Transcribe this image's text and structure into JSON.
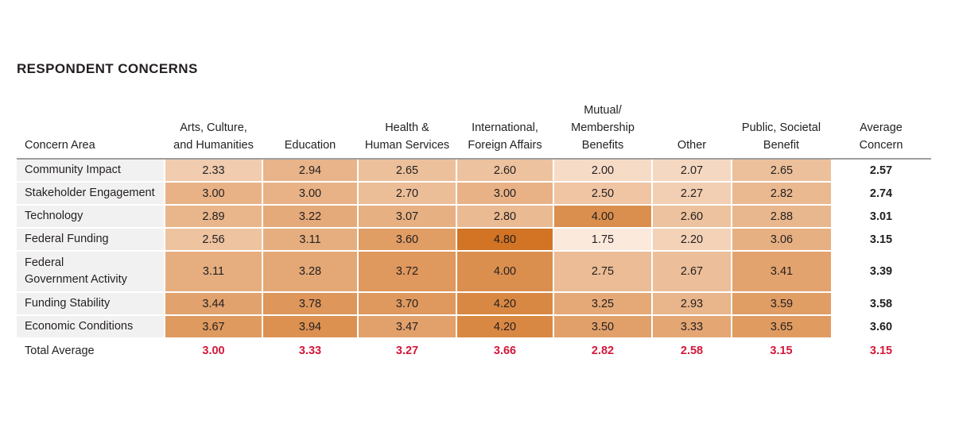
{
  "chart_data": {
    "type": "table",
    "title": "RESPONDENT CONCERNS",
    "row_header_label": "Concern Area",
    "columns": [
      "Arts, Culture,\nand Humanities",
      "Education",
      "Health &\nHuman Services",
      "International,\nForeign Affairs",
      "Mutual/\nMembership\nBenefits",
      "Other",
      "Public, Societal\nBenefit"
    ],
    "average_column_label": "Average\nConcern",
    "rows": [
      {
        "label": "Community Impact",
        "values": [
          2.33,
          2.94,
          2.65,
          2.6,
          2.0,
          2.07,
          2.65
        ],
        "average": 2.57
      },
      {
        "label": "Stakeholder Engagement",
        "values": [
          3.0,
          3.0,
          2.7,
          3.0,
          2.5,
          2.27,
          2.82
        ],
        "average": 2.74
      },
      {
        "label": "Technology",
        "values": [
          2.89,
          3.22,
          3.07,
          2.8,
          4.0,
          2.6,
          2.88
        ],
        "average": 3.01
      },
      {
        "label": "Federal Funding",
        "values": [
          2.56,
          3.11,
          3.6,
          4.8,
          1.75,
          2.2,
          3.06
        ],
        "average": 3.15
      },
      {
        "label": "Federal\nGovernment Activity",
        "values": [
          3.11,
          3.28,
          3.72,
          4.0,
          2.75,
          2.67,
          3.41
        ],
        "average": 3.39
      },
      {
        "label": "Funding Stability",
        "values": [
          3.44,
          3.78,
          3.7,
          4.2,
          3.25,
          2.93,
          3.59
        ],
        "average": 3.58
      },
      {
        "label": "Economic Conditions",
        "values": [
          3.67,
          3.94,
          3.47,
          4.2,
          3.5,
          3.33,
          3.65
        ],
        "average": 3.6
      }
    ],
    "total_row": {
      "label": "Total Average",
      "values": [
        3.0,
        3.33,
        3.27,
        3.66,
        2.82,
        2.58,
        3.15
      ],
      "average": 3.15
    },
    "color_scale": {
      "low": "#fbe9dc",
      "high": "#d27424",
      "domain": [
        1.75,
        4.8
      ]
    },
    "total_color": "#d2183a"
  }
}
